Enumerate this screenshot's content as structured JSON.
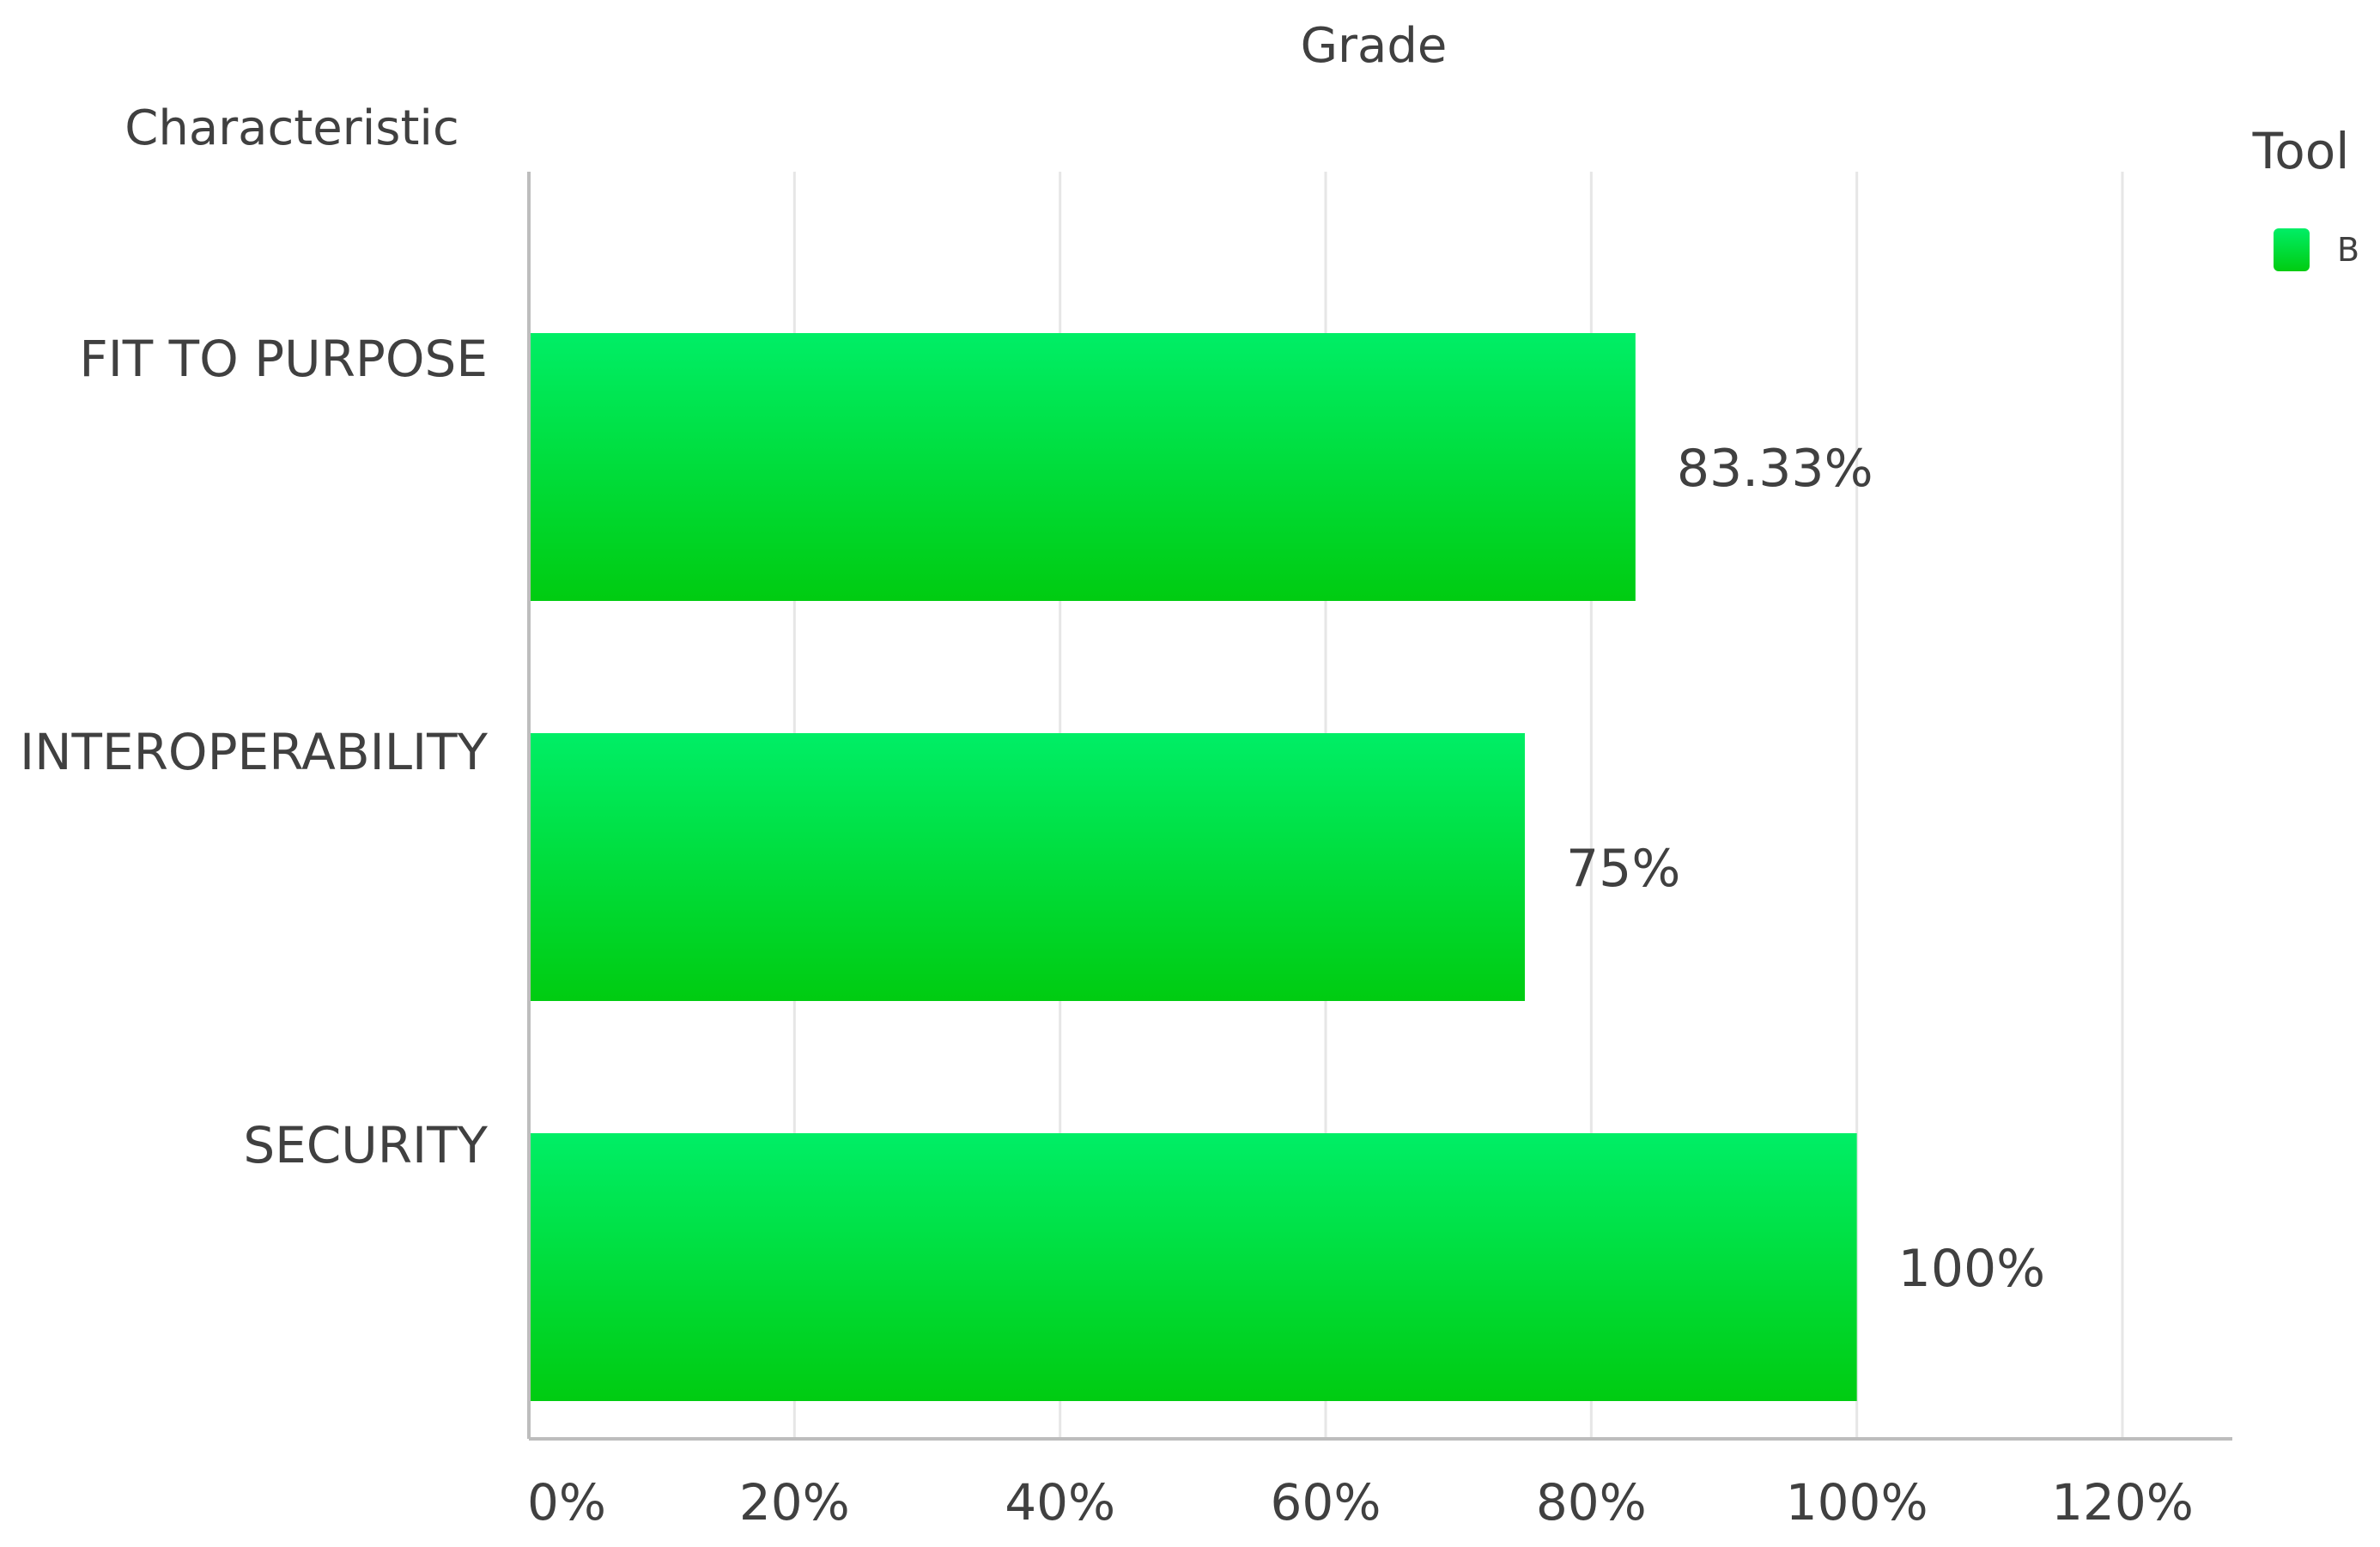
{
  "chart_data": {
    "type": "bar",
    "orientation": "horizontal",
    "title": "Grade",
    "ylabel": "Characteristic",
    "xlabel": "",
    "categories": [
      "FIT TO PURPOSE",
      "INTEROPERABILITY",
      "SECURITY"
    ],
    "series": [
      {
        "name": "B",
        "values": [
          83.33,
          75,
          100
        ],
        "data_labels": [
          "83.33%",
          "75%",
          "100%"
        ],
        "color": "#00dd44"
      }
    ],
    "xlim": [
      0,
      120
    ],
    "x_ticks": [
      0,
      20,
      40,
      60,
      80,
      100,
      120
    ],
    "x_tick_labels": [
      "0%",
      "20%",
      "40%",
      "60%",
      "80%",
      "100%",
      "120%"
    ],
    "grid": "vertical",
    "legend": {
      "title": "Tool",
      "placement": "top-right"
    }
  },
  "colors": {
    "bar_top": "#00ee66",
    "bar_bottom": "#00cc11",
    "gridline": "#e6e6e6",
    "axis": "#bdbdbd",
    "text": "#404040"
  }
}
